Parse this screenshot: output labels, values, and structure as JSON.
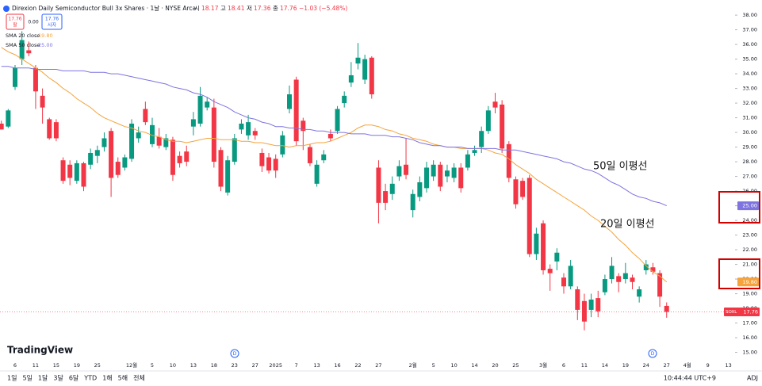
{
  "header": {
    "title": "Direxion Daily Semiconductor Bull 3x Shares · 1날 · NYSE Arca",
    "open_label": "시",
    "high_label": "고",
    "low_label": "저",
    "close_label": "종",
    "change": "−1.03 (−5.48%)",
    "sell_price": "17.76",
    "sell_label": "팔",
    "spread": "0.00",
    "buy_price": "17.76",
    "buy_label": "사자",
    "sma20_value": "19.80",
    "sma50_value": "25.00",
    "symbol": "SOXL"
  },
  "logo": "TradingView",
  "dividend_marker": "D",
  "toolbar": {
    "ranges": [
      "1일",
      "5일",
      "1달",
      "3달",
      "6달",
      "YTD",
      "1해",
      "5해",
      "전체"
    ],
    "clock": "10:44:44 UTC+9",
    "adj": "ADJ"
  },
  "chart_data": {
    "type": "candlestick",
    "up_color": "#089981",
    "down_color": "#f23645",
    "annotations": [
      "50일 이평선",
      "20일 이평선"
    ],
    "categories": [
      null,
      null,
      "6",
      null,
      null,
      "11",
      null,
      null,
      "15",
      null,
      null,
      "19",
      null,
      null,
      "25",
      null,
      null,
      null,
      null,
      "12월",
      null,
      null,
      "5",
      null,
      null,
      "10",
      null,
      null,
      "13",
      null,
      null,
      "18",
      null,
      null,
      "23",
      null,
      null,
      "27",
      null,
      null,
      "2025",
      null,
      null,
      "7",
      null,
      null,
      "13",
      null,
      null,
      "16",
      null,
      null,
      "22",
      null,
      null,
      "27",
      null,
      null,
      null,
      null,
      "2월",
      null,
      null,
      "5",
      null,
      null,
      "10",
      null,
      null,
      "14",
      null,
      null,
      "20",
      null,
      null,
      "25",
      null,
      null,
      null,
      "3월",
      null,
      null,
      "6",
      null,
      null,
      "11",
      null,
      null,
      "14",
      null,
      null,
      "19",
      null,
      null,
      "24",
      null,
      null,
      "27",
      null,
      null,
      "4월",
      null,
      null,
      "9",
      null,
      null,
      "13",
      null
    ],
    "open": [
      30.6,
      30.4,
      33.1,
      35.0,
      35.6,
      34.4,
      32.5,
      30.9,
      30.7,
      28.1,
      27.8,
      26.7,
      27.9,
      27.8,
      28.4,
      29.0,
      30.1,
      28.0,
      27.6,
      28.2,
      29.6,
      31.6,
      29.2,
      29.7,
      29.0,
      29.5,
      28.4,
      28.7,
      30.4,
      30.6,
      31.7,
      31.7,
      28.8,
      25.9,
      28.0,
      30.2,
      29.8,
      30.1,
      28.6,
      28.3,
      28.2,
      28.5,
      31.6,
      33.6,
      30.8,
      29.0,
      26.5,
      28.1,
      29.9,
      30.1,
      32.0,
      33.4,
      34.7,
      33.6,
      35.1,
      27.6,
      26.0,
      25.8,
      27.0,
      27.8,
      24.7,
      25.6,
      26.2,
      27.0,
      27.8,
      27.0,
      26.9,
      27.6,
      27.6,
      28.6,
      29.0,
      30.1,
      32.1,
      31.9,
      29.2,
      26.8,
      26.7,
      26.9,
      21.7,
      23.8,
      20.7,
      21.2,
      20.1,
      19.5,
      19.3,
      18.5,
      17.9,
      18.7,
      19.1,
      20.0,
      20.2,
      20.0,
      20.1,
      18.8,
      20.6,
      20.8,
      20.4,
      18.17,
      null,
      null,
      null,
      null,
      null,
      null,
      null,
      null,
      null,
      null
    ],
    "high": [
      30.8,
      31.6,
      34.6,
      36.9,
      36.2,
      34.6,
      33.0,
      31.0,
      30.9,
      28.3,
      28.1,
      28.1,
      28.0,
      28.9,
      29.1,
      30.0,
      30.3,
      28.3,
      28.5,
      30.9,
      30.4,
      32.1,
      31.0,
      30.3,
      29.9,
      29.7,
      28.7,
      29.1,
      31.4,
      33.1,
      32.4,
      32.3,
      29.0,
      28.4,
      29.9,
      30.9,
      31.2,
      30.3,
      28.9,
      28.6,
      28.5,
      30.1,
      33.2,
      33.8,
      31.0,
      29.2,
      28.1,
      28.8,
      30.2,
      31.8,
      32.8,
      34.8,
      36.1,
      35.3,
      35.2,
      28.1,
      26.5,
      27.0,
      28.1,
      29.6,
      26.1,
      27.0,
      28.0,
      28.1,
      28.0,
      27.8,
      27.9,
      27.9,
      28.8,
      29.1,
      30.4,
      31.8,
      32.7,
      32.2,
      29.4,
      27.0,
      26.9,
      27.1,
      23.5,
      24.0,
      21.0,
      22.1,
      20.4,
      21.3,
      19.5,
      19.0,
      19.0,
      19.2,
      20.3,
      21.5,
      20.4,
      21.1,
      20.3,
      19.5,
      21.3,
      21.1,
      20.6,
      18.41,
      null,
      null,
      null,
      null,
      null,
      null,
      null,
      null,
      null,
      null
    ],
    "low": [
      30.2,
      30.3,
      32.9,
      34.6,
      35.2,
      31.6,
      30.6,
      29.5,
      29.4,
      26.5,
      26.4,
      26.5,
      26.0,
      27.5,
      27.9,
      28.7,
      25.6,
      26.9,
      27.4,
      28.0,
      29.3,
      30.5,
      29.0,
      28.9,
      28.8,
      26.7,
      27.6,
      27.7,
      29.8,
      30.4,
      31.5,
      27.6,
      26.0,
      25.7,
      27.8,
      29.9,
      29.5,
      29.5,
      27.3,
      27.2,
      26.9,
      28.3,
      31.3,
      29.1,
      28.8,
      27.7,
      26.3,
      27.9,
      29.4,
      29.9,
      31.7,
      33.1,
      34.3,
      33.3,
      32.3,
      23.8,
      24.7,
      25.4,
      26.7,
      26.8,
      24.2,
      25.3,
      25.9,
      26.7,
      26.0,
      26.6,
      26.6,
      25.9,
      27.4,
      28.4,
      28.6,
      29.9,
      31.3,
      28.6,
      26.6,
      24.8,
      25.4,
      21.5,
      21.3,
      20.3,
      19.2,
      20.6,
      19.0,
      19.3,
      17.2,
      16.5,
      17.4,
      17.4,
      18.9,
      19.7,
      19.1,
      19.7,
      19.3,
      18.4,
      20.3,
      20.3,
      18.1,
      17.36,
      null,
      null,
      null,
      null,
      null,
      null,
      null,
      null,
      null,
      null
    ],
    "close": [
      30.2,
      31.5,
      34.4,
      36.3,
      35.4,
      32.8,
      31.7,
      29.6,
      29.6,
      26.7,
      26.9,
      27.9,
      26.3,
      28.6,
      28.8,
      29.6,
      26.9,
      27.1,
      28.3,
      30.6,
      30.0,
      30.7,
      30.5,
      29.1,
      29.6,
      27.1,
      27.9,
      28.0,
      30.9,
      32.5,
      32.1,
      28.0,
      26.3,
      28.1,
      29.6,
      30.6,
      30.7,
      29.8,
      27.7,
      27.4,
      27.4,
      29.8,
      32.6,
      29.4,
      30.1,
      27.9,
      27.8,
      28.5,
      29.6,
      31.6,
      32.5,
      33.9,
      35.1,
      35.0,
      32.6,
      25.2,
      25.2,
      26.5,
      27.7,
      27.1,
      25.8,
      26.6,
      27.6,
      27.8,
      26.3,
      27.4,
      27.6,
      26.2,
      28.5,
      28.8,
      30.1,
      31.5,
      31.7,
      28.9,
      26.9,
      25.1,
      25.6,
      21.7,
      23.1,
      20.6,
      20.4,
      21.8,
      19.5,
      20.9,
      17.9,
      17.1,
      18.6,
      17.8,
      20.0,
      20.9,
      19.8,
      20.4,
      19.8,
      19.3,
      21.0,
      20.5,
      18.8,
      17.76,
      null,
      null,
      null,
      null,
      null,
      null,
      null,
      null,
      null,
      null
    ],
    "series": [
      {
        "name": "SMA 20 close",
        "color": "#f5a33c",
        "values": [
          35.8,
          35.5,
          35.3,
          35.0,
          34.7,
          34.4,
          34.1,
          33.7,
          33.4,
          33.0,
          32.7,
          32.3,
          32.0,
          31.7,
          31.3,
          31.0,
          30.8,
          30.6,
          30.4,
          30.3,
          30.1,
          30.0,
          29.8,
          29.7,
          29.5,
          29.4,
          29.4,
          29.3,
          29.4,
          29.5,
          29.6,
          29.6,
          29.5,
          29.5,
          29.5,
          29.4,
          29.4,
          29.3,
          29.3,
          29.2,
          29.1,
          29.1,
          29.0,
          29.1,
          29.1,
          29.2,
          29.3,
          29.3,
          29.4,
          29.6,
          29.8,
          30.0,
          30.3,
          30.5,
          30.5,
          30.4,
          30.2,
          30.1,
          29.9,
          29.8,
          29.6,
          29.5,
          29.4,
          29.2,
          29.1,
          29.0,
          29.0,
          28.9,
          28.9,
          28.9,
          28.9,
          28.8,
          28.6,
          28.5,
          28.2,
          27.8,
          27.5,
          27.2,
          26.8,
          26.5,
          26.2,
          25.9,
          25.6,
          25.3,
          25.0,
          24.7,
          24.3,
          24.0,
          23.6,
          23.2,
          22.7,
          22.3,
          21.8,
          21.4,
          20.9,
          20.5,
          20.2,
          19.8,
          null,
          null,
          null,
          null,
          null,
          null,
          null,
          null,
          null,
          null
        ]
      },
      {
        "name": "SMA 50 close",
        "color": "#7e74e0",
        "values": [
          34.5,
          34.5,
          34.4,
          34.4,
          34.4,
          34.3,
          34.3,
          34.3,
          34.3,
          34.2,
          34.2,
          34.2,
          34.2,
          34.1,
          34.1,
          34.1,
          34.0,
          34.0,
          33.9,
          33.8,
          33.7,
          33.6,
          33.5,
          33.4,
          33.3,
          33.1,
          33.0,
          32.9,
          32.7,
          32.6,
          32.4,
          32.1,
          31.9,
          31.7,
          31.4,
          31.2,
          31.0,
          30.9,
          30.7,
          30.6,
          30.4,
          30.4,
          30.3,
          30.3,
          30.2,
          30.2,
          30.1,
          30.1,
          30.0,
          30.0,
          30.0,
          29.9,
          29.9,
          29.9,
          29.8,
          29.8,
          29.8,
          29.7,
          29.7,
          29.6,
          29.5,
          29.3,
          29.2,
          29.1,
          29.1,
          29.0,
          29.0,
          29.0,
          28.9,
          28.9,
          28.9,
          28.9,
          28.9,
          28.8,
          28.8,
          28.8,
          28.7,
          28.6,
          28.5,
          28.4,
          28.3,
          28.2,
          28.0,
          27.9,
          27.7,
          27.5,
          27.4,
          27.2,
          26.9,
          26.6,
          26.4,
          26.1,
          25.8,
          25.6,
          25.5,
          25.3,
          25.2,
          25.0,
          null,
          null,
          null,
          null,
          null,
          null,
          null,
          null,
          null,
          null
        ]
      }
    ],
    "ylim": [
      14.3,
      38.6
    ],
    "yticks": [
      {
        "value": 15,
        "label": "15.00"
      },
      {
        "value": 16,
        "label": "16.00"
      },
      {
        "value": 17,
        "label": "17.00"
      },
      {
        "value": 18,
        "label": "18.00"
      },
      {
        "value": 19,
        "label": "19.00"
      },
      {
        "value": 20,
        "label": "20.00"
      },
      {
        "value": 21,
        "label": "21.00"
      },
      {
        "value": 22,
        "label": "22.00"
      },
      {
        "value": 23,
        "label": "23.00"
      },
      {
        "value": 24,
        "label": "24.00"
      },
      {
        "value": 25,
        "label": "25.00"
      },
      {
        "value": 26,
        "label": "26.00"
      },
      {
        "value": 27,
        "label": "27.00"
      },
      {
        "value": 28,
        "label": "28.00"
      },
      {
        "value": 29,
        "label": "29.00"
      },
      {
        "value": 30,
        "label": "30.00"
      },
      {
        "value": 31,
        "label": "31.00"
      },
      {
        "value": 32,
        "label": "32.00"
      },
      {
        "value": 33,
        "label": "33.00"
      },
      {
        "value": 34,
        "label": "34.00"
      },
      {
        "value": 35,
        "label": "35.00"
      },
      {
        "value": 36,
        "label": "36.00"
      },
      {
        "value": 37,
        "label": "37.00"
      },
      {
        "value": 38,
        "label": "38.00"
      }
    ],
    "grid": false
  }
}
